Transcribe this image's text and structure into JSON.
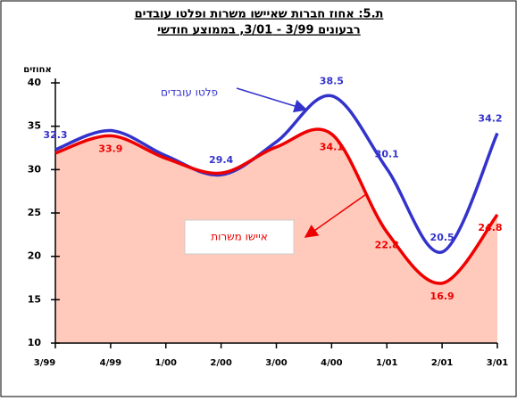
{
  "chart_data": {
    "type": "line",
    "title": "ת.5: אחוז חברות שאיישו משרות ופלטו עובדים",
    "subtitle": "רבעונים 3/99 - 3/01, בממוצע חודשי",
    "y_label": "אחוזים",
    "categories": [
      "3/99",
      "4/99",
      "1/00",
      "2/00",
      "3/00",
      "4/00",
      "1/01",
      "2/01",
      "3/01"
    ],
    "series": [
      {
        "name": "פלטו עובדים",
        "color": "#3333cc",
        "values": [
          32.3,
          34.5,
          31.6,
          29.4,
          33.2,
          38.5,
          30.1,
          20.5,
          34.2
        ],
        "value_labels": [
          "32.3",
          null,
          null,
          "29.4",
          null,
          "38.5",
          "30.1",
          "20.5",
          "34.2"
        ]
      },
      {
        "name": "איישו משרות",
        "color": "#ee0000",
        "fill": "#ffc9bb",
        "values": [
          31.9,
          33.9,
          31.3,
          29.6,
          32.6,
          34.1,
          22.8,
          16.9,
          24.8
        ],
        "value_labels": [
          null,
          "33.9",
          null,
          null,
          null,
          "34.1",
          "22.8",
          "16.9",
          "24.8"
        ]
      }
    ],
    "ylim": [
      10,
      40
    ],
    "yticks": [
      10,
      15,
      20,
      25,
      30,
      35,
      40
    ],
    "grid": false
  }
}
